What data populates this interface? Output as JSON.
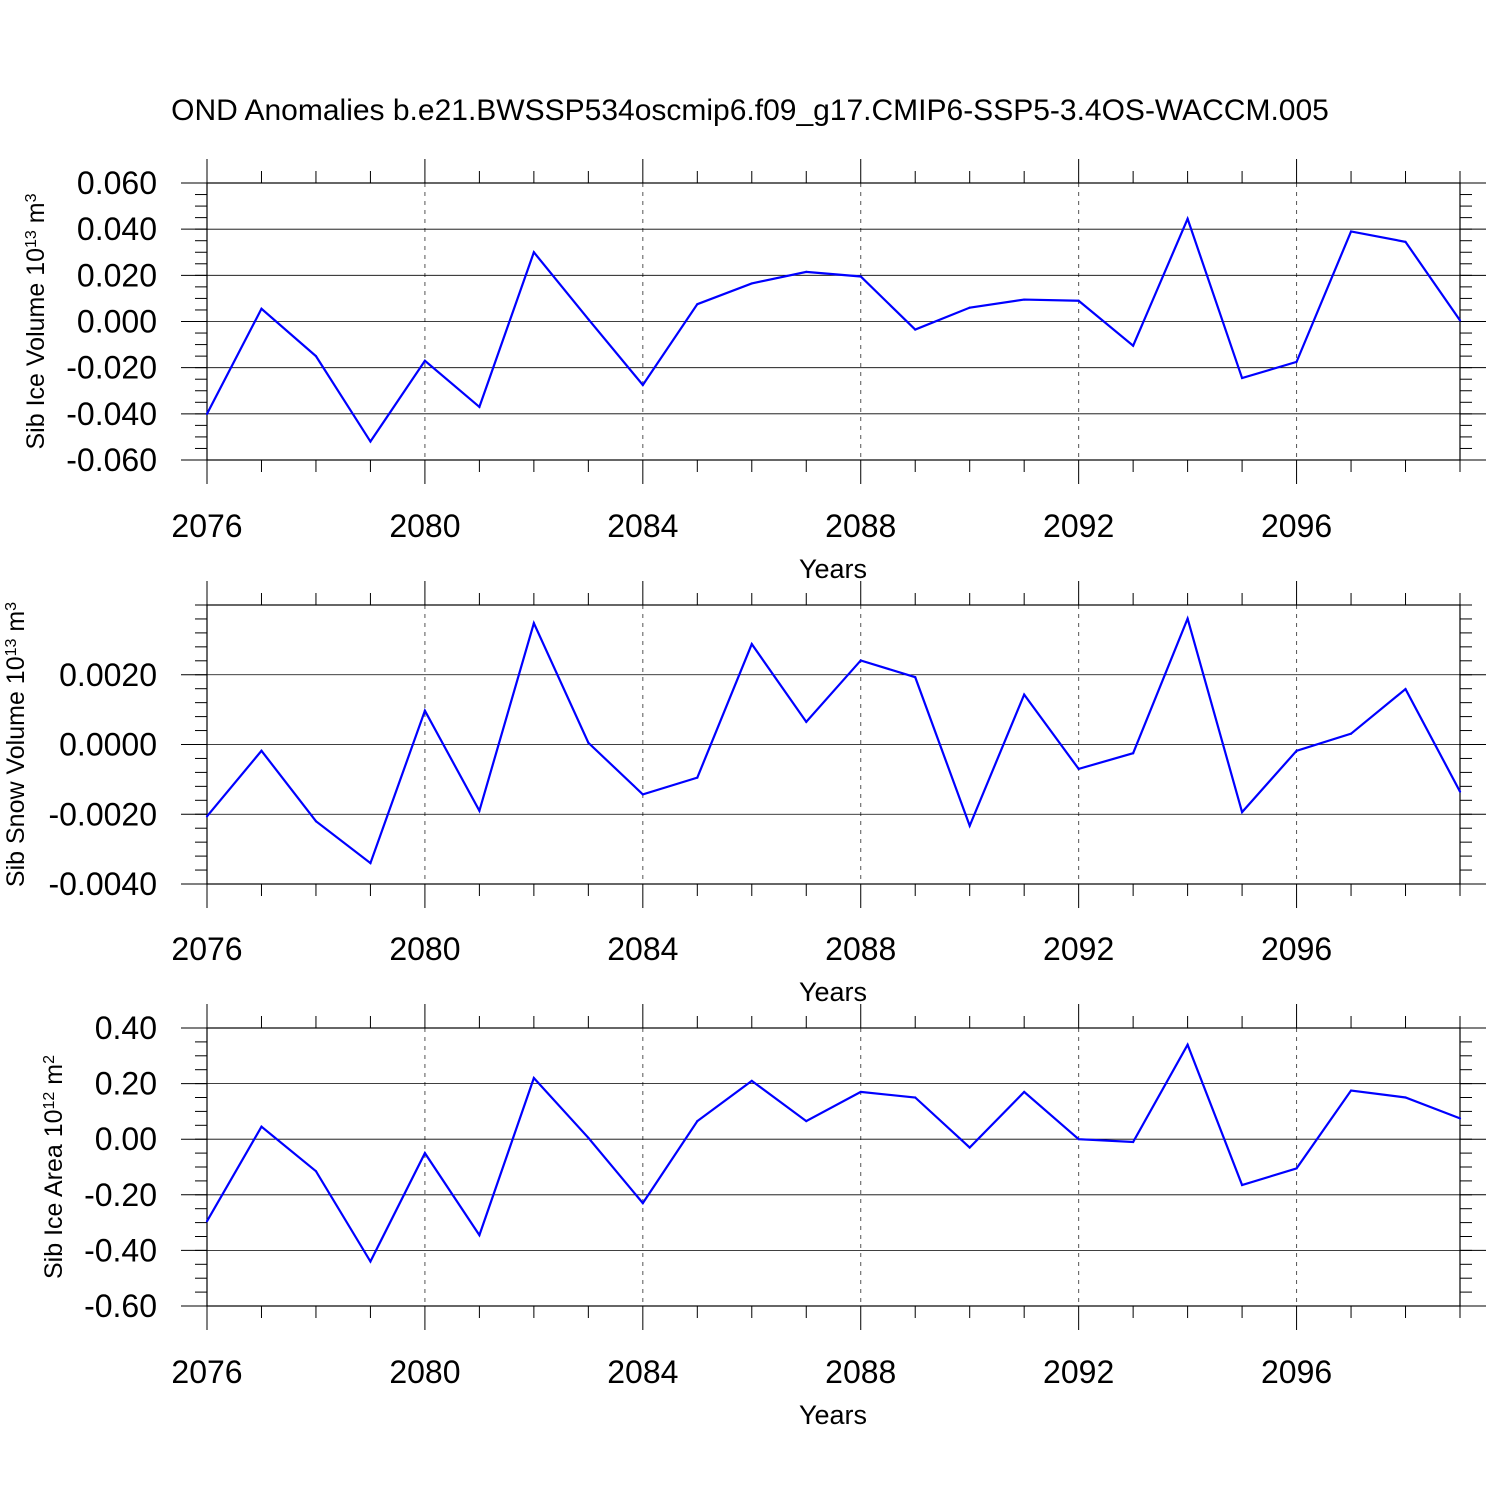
{
  "title": "OND Anomalies b.e21.BWSSP534oscmip6.f09_g17.CMIP6-SSP5-3.4OS-WACCM.005",
  "colors": {
    "line": "#0000ff",
    "axis": "#000000",
    "grid": "#555555",
    "background": "#ffffff"
  },
  "chart_data": [
    {
      "type": "line",
      "name": "ice-volume",
      "ylabel_main": "Sib Ice Volume 10",
      "ylabel_exp": "13",
      "ylabel_unit": " m",
      "ylabel_unit_exp": "3",
      "xlabel": "Years",
      "xlim": [
        2076,
        2099
      ],
      "ylim": [
        -0.06,
        0.06
      ],
      "x_ticks": [
        2076,
        2080,
        2084,
        2088,
        2092,
        2096
      ],
      "x_tick_labels": [
        "2076",
        "2080",
        "2084",
        "2088",
        "2092",
        "2096"
      ],
      "y_ticks": [
        -0.06,
        -0.04,
        -0.02,
        0.0,
        0.02,
        0.04,
        0.06
      ],
      "y_tick_labels": [
        "-0.060",
        "-0.040",
        "-0.020",
        "0.000",
        "0.020",
        "0.040",
        "0.060"
      ],
      "y_minor_step": 0.005,
      "grid": "dashed vertical at major x ticks",
      "x": [
        2076,
        2077,
        2078,
        2079,
        2080,
        2081,
        2082,
        2083,
        2084,
        2085,
        2086,
        2087,
        2088,
        2089,
        2090,
        2091,
        2092,
        2093,
        2094,
        2095,
        2096,
        2097,
        2098,
        2099
      ],
      "values": [
        -0.04,
        0.0055,
        -0.015,
        -0.052,
        -0.017,
        -0.037,
        0.03,
        0.001,
        -0.0275,
        0.0075,
        0.0165,
        0.0215,
        0.0195,
        -0.0035,
        0.006,
        0.0095,
        0.009,
        -0.0105,
        0.0445,
        -0.0245,
        -0.0175,
        0.039,
        0.0345,
        0.0005
      ]
    },
    {
      "type": "line",
      "name": "snow-volume",
      "ylabel_main": "Sib Snow Volume 10",
      "ylabel_exp": "13",
      "ylabel_unit": " m",
      "ylabel_unit_exp": "3",
      "xlabel": "Years",
      "xlim": [
        2076,
        2099
      ],
      "ylim": [
        -0.004,
        0.004
      ],
      "x_ticks": [
        2076,
        2080,
        2084,
        2088,
        2092,
        2096
      ],
      "x_tick_labels": [
        "2076",
        "2080",
        "2084",
        "2088",
        "2092",
        "2096"
      ],
      "y_ticks": [
        -0.004,
        -0.002,
        0.0,
        0.002
      ],
      "y_tick_labels": [
        "-0.0040",
        "-0.0020",
        "0.0000",
        "0.0020"
      ],
      "y_minor_step": 0.0004,
      "grid": "dashed vertical at major x ticks",
      "x": [
        2076,
        2077,
        2078,
        2079,
        2080,
        2081,
        2082,
        2083,
        2084,
        2085,
        2086,
        2087,
        2088,
        2089,
        2090,
        2091,
        2092,
        2093,
        2094,
        2095,
        2096,
        2097,
        2098,
        2099
      ],
      "values": [
        -0.00206,
        -0.00018,
        -0.0022,
        -0.0034,
        0.00097,
        -0.0019,
        0.00348,
        5e-05,
        -0.00143,
        -0.00095,
        0.00288,
        0.00065,
        0.00241,
        0.00193,
        -0.00233,
        0.00143,
        -0.0007,
        -0.00025,
        0.00361,
        -0.00194,
        -0.00018,
        0.00031,
        0.00159,
        -0.00135
      ]
    },
    {
      "type": "line",
      "name": "ice-area",
      "ylabel_main": "Sib Ice Area 10",
      "ylabel_exp": "12",
      "ylabel_unit": " m",
      "ylabel_unit_exp": "2",
      "xlabel": "Years",
      "xlim": [
        2076,
        2099
      ],
      "ylim": [
        -0.6,
        0.4
      ],
      "x_ticks": [
        2076,
        2080,
        2084,
        2088,
        2092,
        2096
      ],
      "x_tick_labels": [
        "2076",
        "2080",
        "2084",
        "2088",
        "2092",
        "2096"
      ],
      "y_ticks": [
        -0.6,
        -0.4,
        -0.2,
        0.0,
        0.2,
        0.4
      ],
      "y_tick_labels": [
        "-0.60",
        "-0.40",
        "-0.20",
        "0.00",
        "0.20",
        "0.40"
      ],
      "y_minor_step": 0.05,
      "grid": "dashed vertical at major x ticks",
      "x": [
        2076,
        2077,
        2078,
        2079,
        2080,
        2081,
        2082,
        2083,
        2084,
        2085,
        2086,
        2087,
        2088,
        2089,
        2090,
        2091,
        2092,
        2093,
        2094,
        2095,
        2096,
        2097,
        2098,
        2099
      ],
      "values": [
        -0.295,
        0.045,
        -0.115,
        -0.44,
        -0.05,
        -0.345,
        0.22,
        0.005,
        -0.23,
        0.065,
        0.21,
        0.065,
        0.17,
        0.15,
        -0.03,
        0.17,
        0.0,
        -0.01,
        0.34,
        -0.165,
        -0.105,
        0.175,
        0.15,
        0.075
      ]
    }
  ]
}
